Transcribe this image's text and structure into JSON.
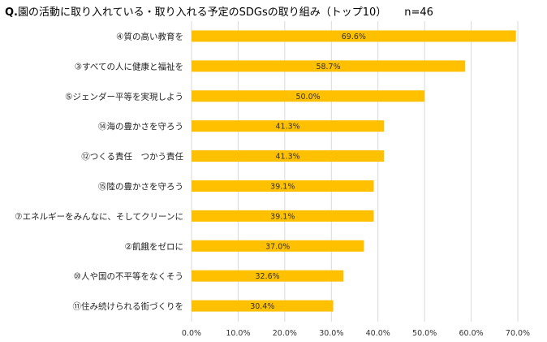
{
  "chart_data": {
    "type": "bar",
    "orientation": "horizontal",
    "title_prefix": "Q.",
    "title": "園の活動に取り入れている・取り入れる予定のSDGsの取り組み（トップ10）",
    "sample_size": "n=46",
    "categories": [
      "④質の高い教育を",
      "③すべての人に健康と福祉を",
      "⑤ジェンダー平等を実現しよう",
      "⑭海の豊かさを守ろう",
      "⑫つくる責任　つかう責任",
      "⑮陸の豊かさを守ろう",
      "⑦エネルギーをみんなに、そしてクリーンに",
      "②飢餓をゼロに",
      "⑩人や国の不平等をなくそう",
      "⑪住み続けられる街づくりを"
    ],
    "values": [
      69.6,
      58.7,
      50.0,
      41.3,
      41.3,
      39.1,
      39.1,
      37.0,
      32.6,
      30.4
    ],
    "data_labels": [
      "69.6%",
      "58.7%",
      "50.0%",
      "41.3%",
      "41.3%",
      "39.1%",
      "39.1%",
      "37.0%",
      "32.6%",
      "30.4%"
    ],
    "xlim": [
      0,
      70
    ],
    "x_ticks": [
      0,
      10,
      20,
      30,
      40,
      50,
      60,
      70
    ],
    "x_tick_labels": [
      "0.0%",
      "10.0%",
      "20.0%",
      "30.0%",
      "40.0%",
      "50.0%",
      "60.0%",
      "70.0%"
    ],
    "grid": true,
    "bar_color": "#FFC000",
    "grid_color": "#D9D9D9",
    "xlabel": "",
    "ylabel": ""
  }
}
